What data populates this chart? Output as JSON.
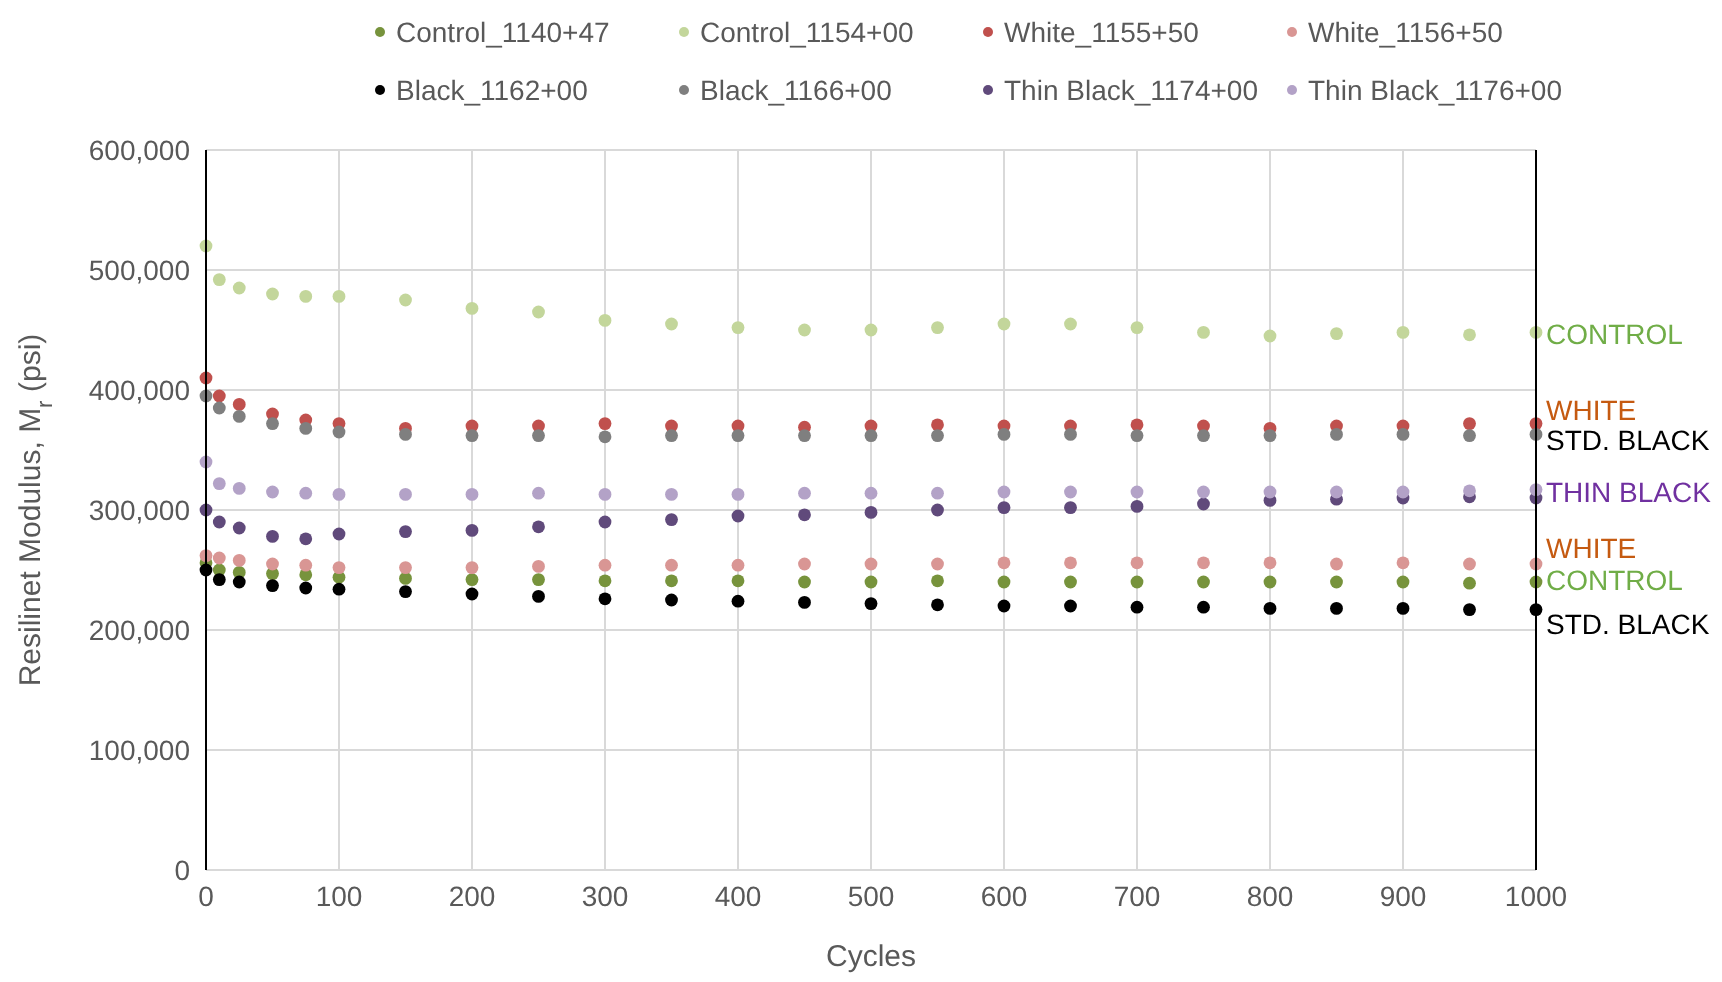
{
  "chart_data": {
    "type": "scatter",
    "xlabel": "Cycles",
    "ylabel": "Resilinet Modulus, M$_{r}$ (psi)",
    "x": [
      0,
      10,
      25,
      50,
      75,
      100,
      150,
      200,
      250,
      300,
      350,
      400,
      450,
      500,
      550,
      600,
      650,
      700,
      750,
      800,
      850,
      900,
      950,
      1000
    ],
    "xlim": [
      0,
      1000
    ],
    "xticks": [
      0,
      100,
      200,
      300,
      400,
      500,
      600,
      700,
      800,
      900,
      1000
    ],
    "ylim": [
      0,
      600000
    ],
    "yticks": [
      {
        "value": 0,
        "label": "0"
      },
      {
        "value": 100000,
        "label": "100,000"
      },
      {
        "value": 200000,
        "label": "200,000"
      },
      {
        "value": 300000,
        "label": "300,000"
      },
      {
        "value": 400000,
        "label": "400,000"
      },
      {
        "value": 500000,
        "label": "500,000"
      },
      {
        "value": 600000,
        "label": "600,000"
      }
    ],
    "grid": true,
    "legend": "top",
    "marker": "circle",
    "series": [
      {
        "name": "Control_1140+47",
        "color": "#77933c",
        "values": [
          256000,
          250000,
          248000,
          247000,
          246000,
          244000,
          243000,
          242000,
          242000,
          241000,
          241000,
          241000,
          240000,
          240000,
          241000,
          240000,
          240000,
          240000,
          240000,
          240000,
          240000,
          240000,
          239000,
          240000
        ]
      },
      {
        "name": "Control_1154+00",
        "color": "#c3d69b",
        "values": [
          520000,
          492000,
          485000,
          480000,
          478000,
          478000,
          475000,
          468000,
          465000,
          458000,
          455000,
          452000,
          450000,
          450000,
          452000,
          455000,
          455000,
          452000,
          448000,
          445000,
          447000,
          448000,
          446000,
          448000
        ]
      },
      {
        "name": "White_1155+50",
        "color": "#c0504d",
        "values": [
          410000,
          395000,
          388000,
          380000,
          375000,
          372000,
          368000,
          370000,
          370000,
          372000,
          370000,
          370000,
          369000,
          370000,
          371000,
          370000,
          370000,
          371000,
          370000,
          368000,
          370000,
          370000,
          372000,
          372000
        ]
      },
      {
        "name": "White_1156+50",
        "color": "#d99694",
        "values": [
          262000,
          260000,
          258000,
          255000,
          254000,
          252000,
          252000,
          252000,
          253000,
          254000,
          254000,
          254000,
          255000,
          255000,
          255000,
          256000,
          256000,
          256000,
          256000,
          256000,
          255000,
          256000,
          255000,
          255000
        ]
      },
      {
        "name": "Black_1162+00",
        "color": "#000000",
        "values": [
          250000,
          242000,
          240000,
          237000,
          235000,
          234000,
          232000,
          230000,
          228000,
          226000,
          225000,
          224000,
          223000,
          222000,
          221000,
          220000,
          220000,
          219000,
          219000,
          218000,
          218000,
          218000,
          217000,
          217000
        ]
      },
      {
        "name": "Black_1166+00",
        "color": "#7f7f7f",
        "values": [
          395000,
          385000,
          378000,
          372000,
          368000,
          365000,
          363000,
          362000,
          362000,
          361000,
          362000,
          362000,
          362000,
          362000,
          362000,
          363000,
          363000,
          362000,
          362000,
          362000,
          363000,
          363000,
          362000,
          363000
        ]
      },
      {
        "name": "Thin Black_1174+00",
        "color": "#604a7b",
        "values": [
          300000,
          290000,
          285000,
          278000,
          276000,
          280000,
          282000,
          283000,
          286000,
          290000,
          292000,
          295000,
          296000,
          298000,
          300000,
          302000,
          302000,
          303000,
          305000,
          308000,
          309000,
          310000,
          311000,
          310000
        ]
      },
      {
        "name": "Thin Black_1176+00",
        "color": "#b3a2c7",
        "values": [
          340000,
          322000,
          318000,
          315000,
          314000,
          313000,
          313000,
          313000,
          314000,
          313000,
          313000,
          313000,
          314000,
          314000,
          314000,
          315000,
          315000,
          315000,
          315000,
          315000,
          315000,
          315000,
          316000,
          317000
        ]
      }
    ],
    "annotations": [
      "CONTROL",
      "WHITE",
      "STD. BLACK",
      "THIN BLACK",
      "WHITE",
      "CONTROL",
      "STD. BLACK"
    ]
  }
}
